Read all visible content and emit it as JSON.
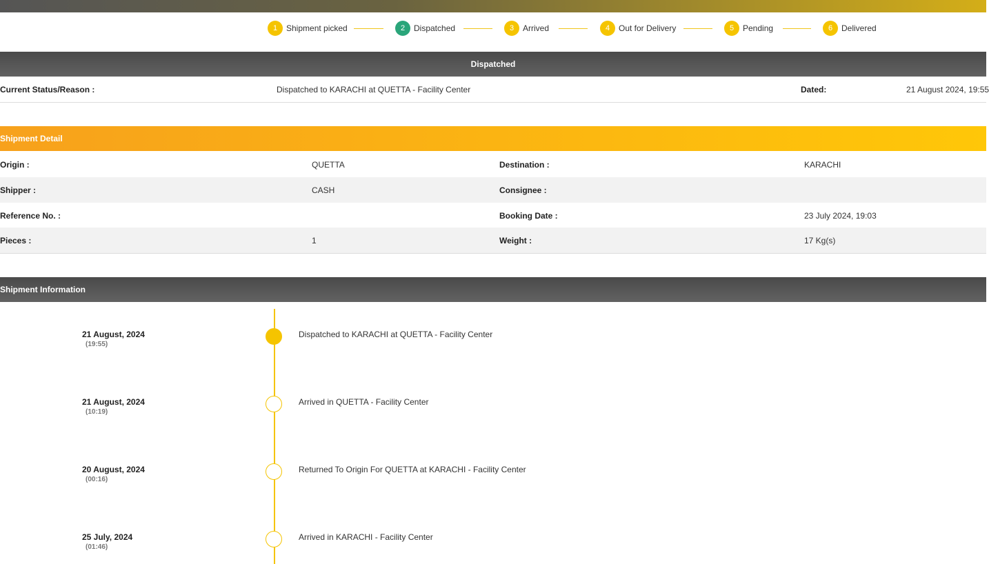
{
  "steps": [
    {
      "number": 1,
      "label": "Shipment picked"
    },
    {
      "number": 2,
      "label": "Dispatched"
    },
    {
      "number": 3,
      "label": "Arrived"
    },
    {
      "number": 4,
      "label": "Out for Delivery"
    },
    {
      "number": 5,
      "label": "Pending"
    },
    {
      "number": 6,
      "label": "Delivered"
    }
  ],
  "status": {
    "title": "Dispatched",
    "label": "Current Status/Reason :",
    "reason": "Dispatched to KARACHI at QUETTA - Facility Center",
    "dated_label": "Dated:",
    "dated": "21 August 2024, 19:55"
  },
  "detail": {
    "title": "Shipment Detail",
    "rows": [
      [
        "Origin :",
        "QUETTA",
        "Destination :",
        "KARACHI"
      ],
      [
        "Shipper :",
        "CASH",
        "Consignee :",
        ""
      ],
      [
        "Reference No. :",
        "",
        "Booking Date :",
        "23 July 2024, 19:03"
      ],
      [
        "Pieces :",
        "1",
        "Weight :",
        "17 Kg(s)"
      ]
    ]
  },
  "information": {
    "title": "Shipment Information",
    "events": [
      {
        "date": "21 August, 2024",
        "time": "(19:55)",
        "text": "Dispatched to KARACHI at QUETTA - Facility Center"
      },
      {
        "date": "21 August, 2024",
        "time": "(10:19)",
        "text": "Arrived in QUETTA - Facility Center"
      },
      {
        "date": "20 August, 2024",
        "time": "(00:16)",
        "text": "Returned To Origin For QUETTA at KARACHI - Facility Center"
      },
      {
        "date": "25 July, 2024",
        "time": "(01:46)",
        "text": "Arrived in KARACHI - Facility Center"
      }
    ]
  }
}
